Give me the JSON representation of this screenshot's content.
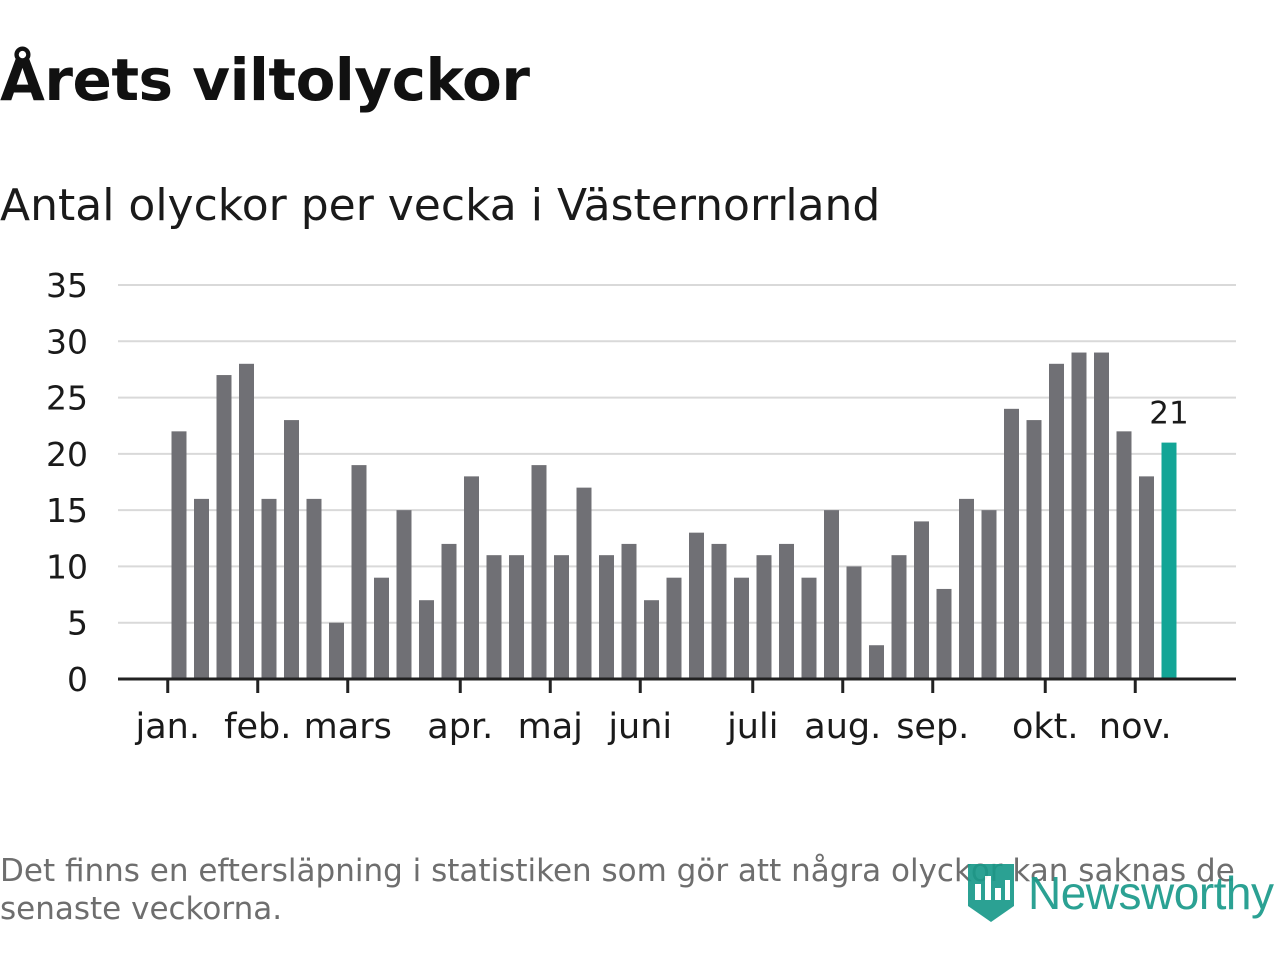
{
  "title": "Årets viltolyckor",
  "subtitle": "Antal olyckor per vecka i Västernorrland",
  "footnote": "Det finns en eftersläpning i statistiken som gör att några olyckor kan saknas de senaste veckorna.",
  "brand": {
    "name": "Newsworthy",
    "icon": "newsworthy-logo-icon"
  },
  "colors": {
    "bar": "#707075",
    "highlight": "#13a596",
    "grid": "#d9d9d9",
    "axis": "#222222",
    "text": "#1a1a1a",
    "brand": "#1a9a8a"
  },
  "chart_data": {
    "type": "bar",
    "title": "Antal olyckor per vecka i Västernorrland",
    "xlabel": "",
    "ylabel": "",
    "ylim": [
      0,
      35
    ],
    "yticks": [
      0,
      5,
      10,
      15,
      20,
      25,
      30,
      35
    ],
    "grid": true,
    "values": [
      22,
      16,
      27,
      28,
      16,
      23,
      16,
      5,
      19,
      9,
      15,
      7,
      12,
      18,
      11,
      11,
      19,
      11,
      17,
      11,
      12,
      7,
      9,
      13,
      12,
      9,
      11,
      12,
      9,
      15,
      10,
      3,
      11,
      14,
      8,
      16,
      15,
      24,
      23,
      28,
      29,
      29,
      22,
      18,
      21
    ],
    "highlight_index": 44,
    "highlight_label": "21",
    "month_ticks": [
      {
        "label": "jan.",
        "position": -0.5
      },
      {
        "label": "feb.",
        "position": 3.5
      },
      {
        "label": "mars",
        "position": 7.5
      },
      {
        "label": "apr.",
        "position": 12.5
      },
      {
        "label": "maj",
        "position": 16.5
      },
      {
        "label": "juni",
        "position": 20.5
      },
      {
        "label": "juli",
        "position": 25.5
      },
      {
        "label": "aug.",
        "position": 29.5
      },
      {
        "label": "sep.",
        "position": 33.5
      },
      {
        "label": "okt.",
        "position": 38.5
      },
      {
        "label": "nov.",
        "position": 42.5
      }
    ]
  }
}
